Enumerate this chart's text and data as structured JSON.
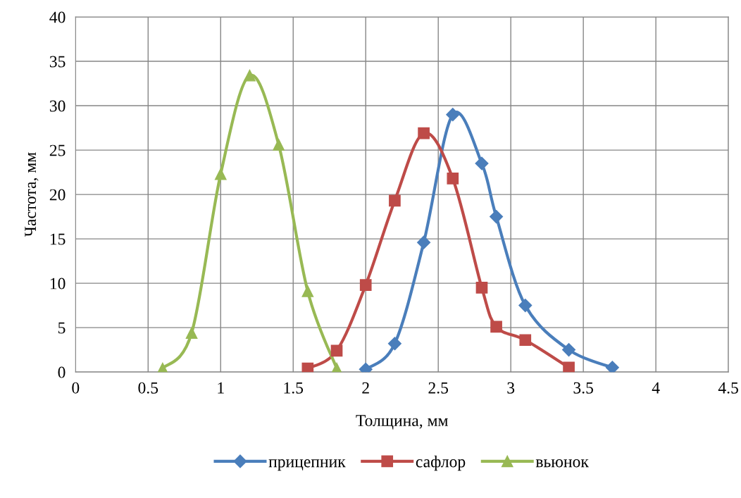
{
  "chart_data": {
    "type": "line",
    "xlabel": "Толщина, мм",
    "ylabel": "Частота, мм",
    "xlim": [
      0,
      4.5
    ],
    "xticks": [
      0,
      0.5,
      1,
      1.5,
      2,
      2.5,
      3,
      3.5,
      4,
      4.5
    ],
    "ylim": [
      0,
      40
    ],
    "yticks": [
      0,
      5,
      10,
      15,
      20,
      25,
      30,
      35,
      40
    ],
    "grid": true,
    "legend": "bottom",
    "line_style": "solid",
    "series": [
      {
        "name": "прицепник",
        "color": "#4a7ebb",
        "marker": "diamond",
        "x": [
          2.0,
          2.2,
          2.4,
          2.6,
          2.8,
          2.9,
          3.1,
          3.4,
          3.7
        ],
        "values": [
          0.3,
          3.2,
          14.6,
          29,
          23.5,
          17.5,
          7.5,
          2.5,
          0.5
        ]
      },
      {
        "name": "сафлор",
        "color": "#be4b48",
        "marker": "square",
        "x": [
          1.6,
          1.8,
          2.0,
          2.2,
          2.4,
          2.6,
          2.8,
          2.9,
          3.1,
          3.4
        ],
        "values": [
          0.4,
          2.4,
          9.8,
          19.3,
          26.9,
          21.8,
          9.5,
          5.1,
          3.6,
          0.5
        ]
      },
      {
        "name": "вьюнок",
        "color": "#98b954",
        "marker": "triangle",
        "x": [
          0.6,
          0.8,
          1.0,
          1.2,
          1.4,
          1.6,
          1.8
        ],
        "values": [
          0.4,
          4.4,
          22.3,
          33.4,
          25.6,
          9.1,
          0.4
        ]
      }
    ]
  }
}
